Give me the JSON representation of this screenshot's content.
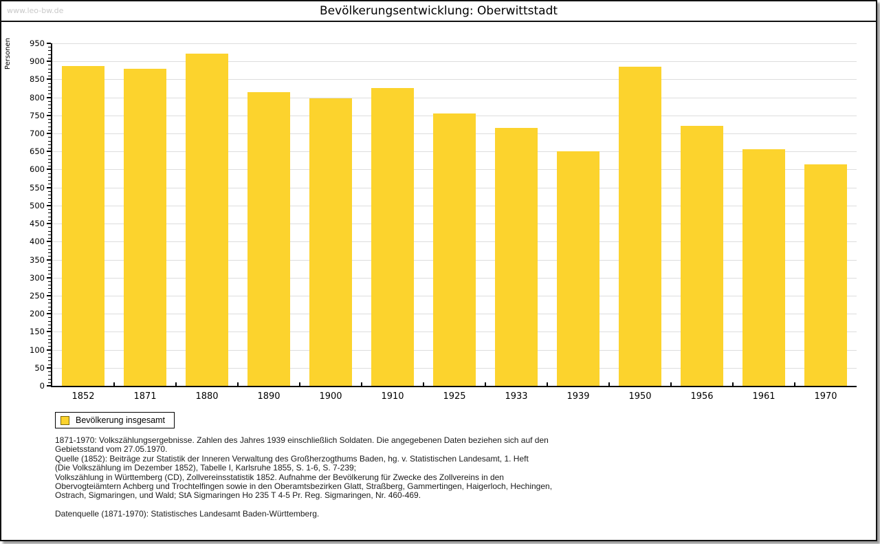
{
  "page": {
    "watermark": "www.leo-bw.de",
    "title": "Bevölkerungsentwicklung: Oberwittstadt"
  },
  "chart_data": {
    "type": "bar",
    "title": "Bevölkerungsentwicklung: Oberwittstadt",
    "xlabel": "",
    "ylabel": "Personen",
    "ylim": [
      0,
      950
    ],
    "ytick_step": 50,
    "yminor_step": 10,
    "grid": true,
    "legend_position": "bottom-left",
    "categories": [
      "1852",
      "1871",
      "1880",
      "1890",
      "1900",
      "1910",
      "1925",
      "1933",
      "1939",
      "1950",
      "1956",
      "1961",
      "1970"
    ],
    "series": [
      {
        "name": "Bevölkerung insgesamt",
        "values": [
          888,
          880,
          922,
          814,
          798,
          826,
          755,
          715,
          651,
          886,
          721,
          656,
          615
        ]
      }
    ],
    "bar_color": "#FCD32D",
    "swatch_border_color": "#7d6608",
    "grid_color": "#DDDDDD",
    "axis_color": "#000000"
  },
  "notes": {
    "lines": [
      "1871-1970: Volkszählungsergebnisse. Zahlen des Jahres 1939 einschließlich Soldaten. Die angegebenen Daten beziehen sich auf den",
      "Gebietsstand vom 27.05.1970.",
      "Quelle (1852): Beiträge zur Statistik der Inneren Verwaltung des Großherzogthums Baden, hg. v. Statistischen Landesamt, 1. Heft",
      "(Die Volkszählung im Dezember 1852), Tabelle I, Karlsruhe 1855, S. 1-6, S. 7-239;",
      "Volkszählung in Württemberg (CD), Zollvereinsstatistik 1852. Aufnahme der Bevölkerung für Zwecke des Zollvereins in den",
      "Obervogteiämtern Achberg und Trochtelfingen sowie in den Oberamtsbezirken Glatt, Straßberg, Gammertingen, Haigerloch, Hechingen,",
      "Ostrach, Sigmaringen, und Wald; StA Sigmaringen Ho 235 T 4-5 Pr. Reg. Sigmaringen, Nr. 460-469."
    ],
    "datasource": "Datenquelle (1871-1970): Statistisches Landesamt Baden-Württemberg."
  }
}
